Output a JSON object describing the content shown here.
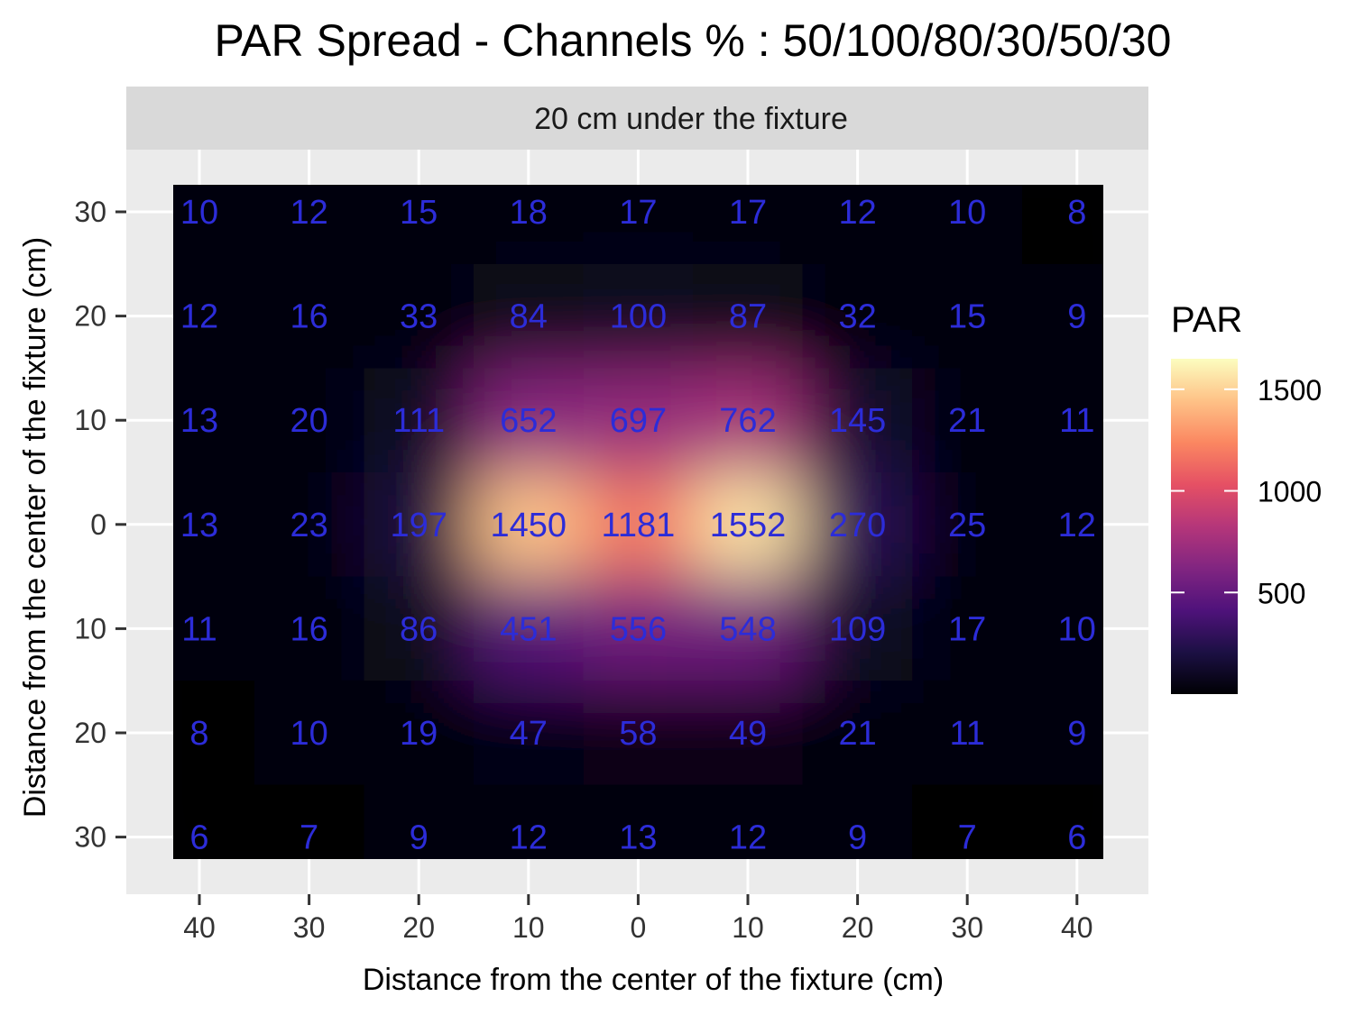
{
  "chart_data": {
    "type": "heatmap",
    "title": "PAR Spread - Channels % : 50/100/80/30/50/30",
    "facet_label": "20 cm under the fixture",
    "xlabel": "Distance from the center of the fixture (cm)",
    "ylabel": "Distance from the center of the fixture (cm)",
    "x_values": [
      -40,
      -30,
      -20,
      -10,
      0,
      10,
      20,
      30,
      40
    ],
    "y_values": [
      30,
      20,
      10,
      0,
      -10,
      -20,
      -30
    ],
    "x_tick_labels": [
      "40",
      "30",
      "20",
      "10",
      "0",
      "10",
      "20",
      "30",
      "40"
    ],
    "y_tick_labels": [
      "30",
      "20",
      "10",
      "0",
      "10",
      "20",
      "30"
    ],
    "values": [
      [
        10,
        12,
        15,
        18,
        17,
        17,
        12,
        10,
        8
      ],
      [
        12,
        16,
        33,
        84,
        100,
        87,
        32,
        15,
        9
      ],
      [
        13,
        20,
        111,
        652,
        697,
        762,
        145,
        21,
        11
      ],
      [
        13,
        23,
        197,
        1450,
        1181,
        1552,
        270,
        25,
        12
      ],
      [
        11,
        16,
        86,
        451,
        556,
        548,
        109,
        17,
        10
      ],
      [
        8,
        10,
        19,
        47,
        58,
        49,
        21,
        11,
        9
      ],
      [
        6,
        7,
        9,
        12,
        13,
        12,
        9,
        7,
        6
      ]
    ],
    "legend": {
      "title": "PAR",
      "ticks": [
        500,
        1000,
        1500
      ],
      "range": [
        0,
        1650
      ],
      "placement": "right",
      "colormap": "magma"
    },
    "grid": true
  },
  "colors": {
    "panel_bg": "#ebebeb",
    "strip_bg": "#d9d9d9",
    "grid": "#ffffff",
    "label_text": "#2c2cd8",
    "colormap_stops": [
      "#000004",
      "#1c1044",
      "#4f127b",
      "#812581",
      "#b5367a",
      "#e55064",
      "#fb8761",
      "#fec287",
      "#fcfdbf"
    ]
  }
}
